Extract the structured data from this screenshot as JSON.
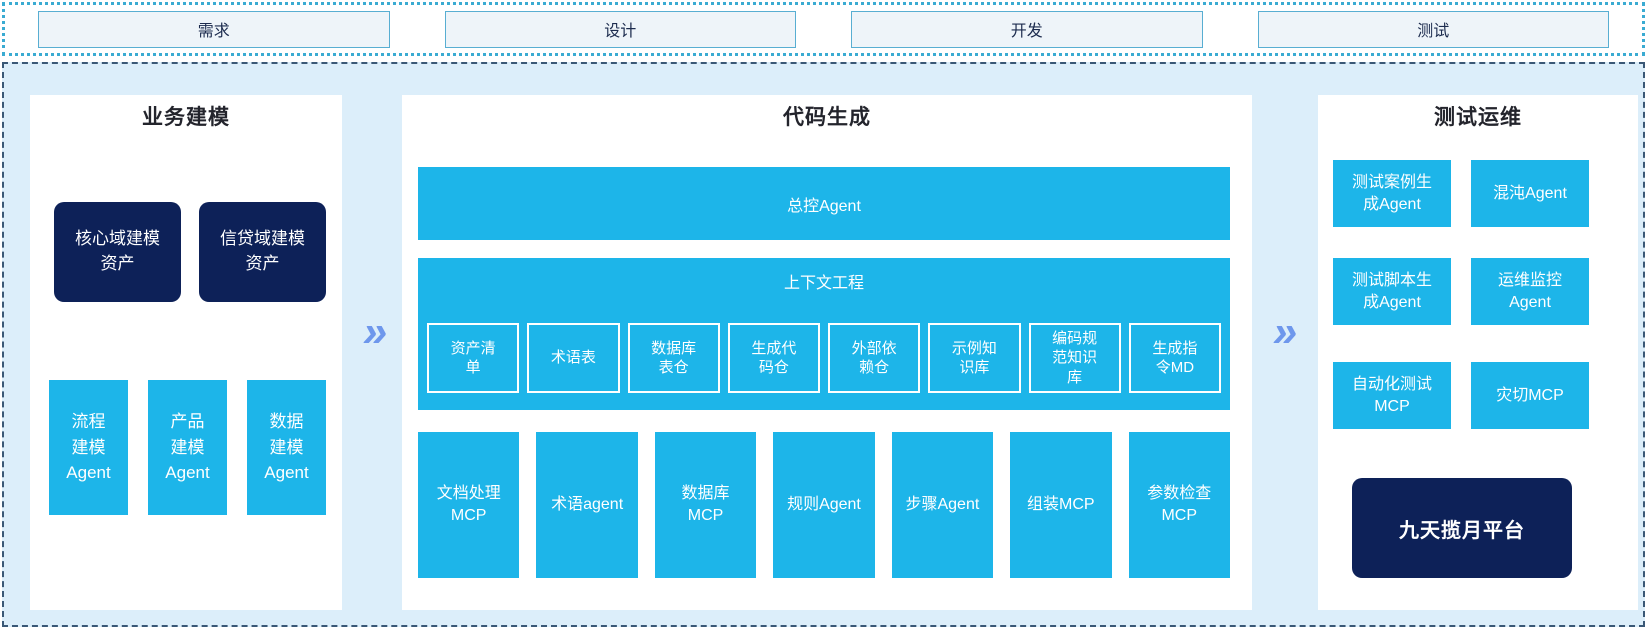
{
  "colors": {
    "cyan": "#1db5e9",
    "navy": "#0d2158",
    "area_background": "#dceefa",
    "phase_box_fill": "#eef4f9",
    "phase_border": "#58aed2",
    "dotted_border": "#3aabd2",
    "dashed_border": "#3a5876",
    "arrow": "#6e97ec"
  },
  "phases": [
    {
      "label": "需求"
    },
    {
      "label": "设计"
    },
    {
      "label": "开发"
    },
    {
      "label": "测试"
    }
  ],
  "arrows": {
    "glyph": "»"
  },
  "panels": {
    "business_modeling": {
      "title": "业务建模",
      "assets": [
        "核心域建模\n资产",
        "信贷域建模\n资产"
      ],
      "agents": [
        "流程\n建模\nAgent",
        "产品\n建模\nAgent",
        "数据\n建模\nAgent"
      ]
    },
    "code_generation": {
      "title": "代码生成",
      "master_agent": "总控Agent",
      "context_engineering": {
        "title": "上下文工程",
        "items": [
          "资产清\n单",
          "术语表",
          "数据库\n表仓",
          "生成代\n码仓",
          "外部依\n赖仓",
          "示例知\n识库",
          "编码规\n范知识\n库",
          "生成指\n令MD"
        ]
      },
      "executors": [
        "文档处理\nMCP",
        "术语agent",
        "数据库\nMCP",
        "规则Agent",
        "步骤Agent",
        "组装MCP",
        "参数检查\nMCP"
      ]
    },
    "test_ops": {
      "title": "测试运维",
      "boxes": [
        "测试案例生\n成Agent",
        "混沌Agent",
        "测试脚本生\n成Agent",
        "运维监控\nAgent",
        "自动化测试\nMCP",
        "灾切MCP"
      ],
      "platform": "九天揽月平台"
    }
  }
}
